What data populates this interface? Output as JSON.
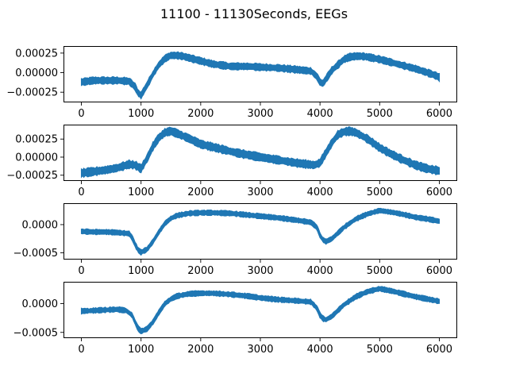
{
  "figure": {
    "title": "11100 - 11130Seconds, EEGs",
    "line_color": "#1f77b4"
  },
  "chart_data": [
    {
      "type": "line",
      "title": "",
      "xlabel": "",
      "ylabel": "",
      "xlim": [
        -300,
        6300
      ],
      "ylim": [
        -0.00038,
        0.00034
      ],
      "xticks": [
        0,
        1000,
        2000,
        3000,
        4000,
        5000,
        6000
      ],
      "xtick_labels": [
        "0",
        "1000",
        "2000",
        "3000",
        "4000",
        "5000",
        "6000"
      ],
      "yticks": [
        0.00025,
        0.0,
        -0.00025
      ],
      "ytick_labels": [
        "0.00025",
        "0.00000",
        "−0.00025"
      ],
      "grid": false,
      "series": [
        {
          "band_halfwidth": 4e-05,
          "x": [
            0,
            200,
            400,
            600,
            800,
            900,
            950,
            1000,
            1100,
            1200,
            1300,
            1400,
            1500,
            1600,
            1700,
            1800,
            2000,
            2200,
            2500,
            2800,
            3000,
            3300,
            3600,
            3850,
            3950,
            4000,
            4050,
            4100,
            4200,
            4300,
            4400,
            4500,
            4600,
            4700,
            4800,
            5000,
            5200,
            5400,
            5600,
            5800,
            5950,
            6000
          ],
          "y": [
            -0.00012,
            -0.0001,
            -0.0001,
            -0.0001,
            -0.00011,
            -0.00018,
            -0.00026,
            -0.00029,
            -0.00016,
            -2e-05,
            0.0001,
            0.00018,
            0.00022,
            0.00022,
            0.00021,
            0.00019,
            0.00015,
            0.00011,
            8e-05,
            8e-05,
            7e-05,
            6e-05,
            4e-05,
            2e-05,
            -5e-05,
            -0.00012,
            -0.00014,
            -8e-05,
            3e-05,
            0.0001,
            0.00017,
            0.0002,
            0.00021,
            0.00021,
            0.0002,
            0.00017,
            0.00013,
            9e-05,
            5e-05,
            0.0,
            -4e-05,
            -6e-05
          ]
        }
      ]
    },
    {
      "type": "line",
      "title": "",
      "xlabel": "",
      "ylabel": "",
      "xlim": [
        -300,
        6300
      ],
      "ylim": [
        -0.00033,
        0.00045
      ],
      "xticks": [
        0,
        1000,
        2000,
        3000,
        4000,
        5000,
        6000
      ],
      "xtick_labels": [
        "0",
        "1000",
        "2000",
        "3000",
        "4000",
        "5000",
        "6000"
      ],
      "yticks": [
        0.00025,
        0.0,
        -0.00025
      ],
      "ytick_labels": [
        "0.00025",
        "0.00000",
        "−0.00025"
      ],
      "grid": false,
      "series": [
        {
          "band_halfwidth": 5e-05,
          "x": [
            0,
            200,
            400,
            600,
            800,
            900,
            1000,
            1100,
            1200,
            1300,
            1400,
            1500,
            1600,
            1800,
            2000,
            2300,
            2600,
            3000,
            3300,
            3600,
            3900,
            4000,
            4100,
            4200,
            4300,
            4400,
            4500,
            4600,
            4800,
            5000,
            5200,
            5400,
            5600,
            5800,
            6000
          ],
          "y": [
            -0.00022,
            -0.0002,
            -0.00018,
            -0.00015,
            -0.0001,
            -0.00011,
            -0.00016,
            -2e-05,
            0.00015,
            0.00027,
            0.00034,
            0.00036,
            0.00033,
            0.00026,
            0.00018,
            0.00012,
            6e-05,
            0.0,
            -4e-05,
            -8e-05,
            -0.00011,
            -8e-05,
            6e-05,
            0.0002,
            0.00031,
            0.00035,
            0.00036,
            0.00034,
            0.00025,
            0.00013,
            4e-05,
            -4e-05,
            -0.00011,
            -0.00016,
            -0.00019
          ]
        }
      ]
    },
    {
      "type": "line",
      "title": "",
      "xlabel": "",
      "ylabel": "",
      "xlim": [
        -300,
        6300
      ],
      "ylim": [
        -0.00062,
        0.00038
      ],
      "xticks": [
        0,
        1000,
        2000,
        3000,
        4000,
        5000,
        6000
      ],
      "xtick_labels": [
        "0",
        "1000",
        "2000",
        "3000",
        "4000",
        "5000",
        "6000"
      ],
      "yticks": [
        0.0,
        -0.0005
      ],
      "ytick_labels": [
        "0.0000",
        "−0.0005"
      ],
      "grid": false,
      "series": [
        {
          "band_halfwidth": 4e-05,
          "x": [
            0,
            200,
            400,
            600,
            800,
            850,
            900,
            950,
            1000,
            1100,
            1200,
            1300,
            1400,
            1500,
            1600,
            1800,
            2000,
            2200,
            2500,
            2800,
            3000,
            3300,
            3600,
            3850,
            3950,
            4000,
            4050,
            4100,
            4200,
            4300,
            4400,
            4600,
            4800,
            5000,
            5200,
            5400,
            5600,
            5800,
            6000
          ],
          "y": [
            -0.00012,
            -0.00013,
            -0.00013,
            -0.00014,
            -0.00016,
            -0.00023,
            -0.00035,
            -0.00045,
            -0.00049,
            -0.00044,
            -0.0003,
            -0.00013,
            2e-05,
            0.00011,
            0.00016,
            0.0002,
            0.00021,
            0.00021,
            0.0002,
            0.00017,
            0.00015,
            0.00012,
            8e-05,
            4e-05,
            -5e-05,
            -0.00019,
            -0.00027,
            -0.0003,
            -0.00025,
            -0.00015,
            -5e-05,
            0.0001,
            0.00019,
            0.00025,
            0.00022,
            0.00018,
            0.00013,
            0.0001,
            6e-05
          ]
        }
      ]
    },
    {
      "type": "line",
      "title": "",
      "xlabel": "",
      "ylabel": "",
      "xlim": [
        -300,
        6300
      ],
      "ylim": [
        -0.0006,
        0.00038
      ],
      "xticks": [
        0,
        1000,
        2000,
        3000,
        4000,
        5000,
        6000
      ],
      "xtick_labels": [
        "0",
        "1000",
        "2000",
        "3000",
        "4000",
        "5000",
        "6000"
      ],
      "yticks": [
        0.0,
        -0.0005
      ],
      "ytick_labels": [
        "0.0000",
        "−0.0005"
      ],
      "grid": false,
      "series": [
        {
          "band_halfwidth": 4e-05,
          "x": [
            0,
            200,
            400,
            600,
            750,
            850,
            900,
            950,
            1000,
            1100,
            1200,
            1300,
            1400,
            1500,
            1600,
            1800,
            2000,
            2200,
            2500,
            2800,
            3000,
            3300,
            3600,
            3850,
            3950,
            4000,
            4050,
            4100,
            4200,
            4300,
            4400,
            4600,
            4800,
            5000,
            5200,
            5400,
            5600,
            5800,
            6000
          ],
          "y": [
            -0.00013,
            -0.00012,
            -0.00011,
            -0.0001,
            -0.00012,
            -0.0002,
            -0.00032,
            -0.00043,
            -0.00048,
            -0.00044,
            -0.00032,
            -0.00015,
            0.0,
            8e-05,
            0.00013,
            0.00017,
            0.00018,
            0.00018,
            0.00016,
            0.00013,
            0.0001,
            7e-05,
            5e-05,
            3e-05,
            -8e-05,
            -0.0002,
            -0.00026,
            -0.00028,
            -0.00022,
            -0.00012,
            -2e-05,
            0.00012,
            0.00021,
            0.00026,
            0.00022,
            0.00017,
            0.00012,
            8e-05,
            4e-05
          ]
        }
      ]
    }
  ]
}
